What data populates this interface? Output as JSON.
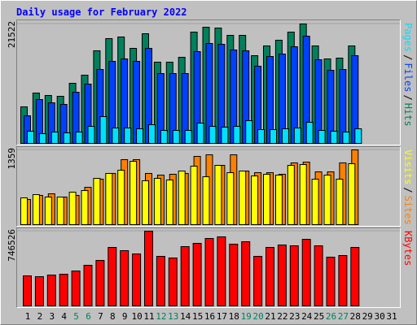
{
  "title": "Daily usage for February 2022",
  "chart_data": [
    {
      "type": "bar",
      "ylim": [
        0,
        21522
      ],
      "yticks": [
        21522
      ],
      "grid": true,
      "legend_separator": "/",
      "series": [
        {
          "name": "Hits",
          "color": "#00805c",
          "values": [
            6590,
            9077,
            8638,
            8491,
            10834,
            12298,
            16690,
            18886,
            19179,
            17129,
            19764,
            14640,
            14640,
            15518,
            20057,
            20935,
            20789,
            19471,
            19471,
            15811,
            17568,
            18593,
            20057,
            21522,
            17568,
            15226,
            15372,
            17568,
            null,
            null,
            null
          ]
        },
        {
          "name": "Files",
          "color": "#0040ff",
          "values": [
            4978,
            7906,
            7320,
            7027,
            9223,
            10687,
            13322,
            14786,
            15226,
            14786,
            17129,
            12590,
            12590,
            12590,
            16543,
            18007,
            17861,
            16836,
            16690,
            13908,
            15665,
            16104,
            17422,
            19325,
            15079,
            13176,
            13322,
            15811,
            null,
            null,
            null
          ]
        },
        {
          "name": "Pages",
          "color": "#00e0ff",
          "values": [
            2196,
            1757,
            2050,
            1903,
            2050,
            3074,
            4831,
            2782,
            2782,
            2635,
            3367,
            2342,
            2342,
            2342,
            3660,
            3074,
            2928,
            3074,
            4099,
            2489,
            2489,
            2635,
            2782,
            3806,
            2342,
            2196,
            2050,
            2635,
            null,
            null,
            null
          ]
        }
      ]
    },
    {
      "type": "bar",
      "ylim": [
        0,
        1359
      ],
      "yticks": [
        1359
      ],
      "grid": true,
      "legend_separator": "/",
      "series": [
        {
          "name": "Sites",
          "color": "#ff8000",
          "values": [
            458,
            532,
            561,
            502,
            532,
            679,
            827,
            931,
            1182,
            1182,
            931,
            901,
            916,
            931,
            1241,
            1270,
            1078,
            1270,
            975,
            945,
            945,
            916,
            1123,
            1137,
            960,
            960,
            1123,
            1359,
            null,
            null,
            null
          ]
        },
        {
          "name": "Visits",
          "color": "#ffff00",
          "values": [
            487,
            546,
            502,
            502,
            591,
            620,
            842,
            931,
            990,
            1152,
            798,
            842,
            812,
            975,
            1063,
            871,
            1078,
            945,
            975,
            886,
            916,
            901,
            1078,
            1093,
            827,
            901,
            827,
            1108,
            null,
            null,
            null
          ]
        }
      ]
    },
    {
      "type": "bar",
      "ylim": [
        0,
        746526
      ],
      "yticks": [
        746526
      ],
      "grid": true,
      "categories": [
        "1",
        "2",
        "3",
        "4",
        "5",
        "6",
        "7",
        "8",
        "9",
        "10",
        "11",
        "12",
        "13",
        "14",
        "15",
        "16",
        "17",
        "18",
        "19",
        "20",
        "21",
        "22",
        "23",
        "24",
        "25",
        "26",
        "27",
        "28",
        "29",
        "30",
        "31"
      ],
      "category_colors": [
        "#000000",
        "#000000",
        "#000000",
        "#000000",
        "#00805c",
        "#00805c",
        "#000000",
        "#000000",
        "#000000",
        "#000000",
        "#000000",
        "#00805c",
        "#00805c",
        "#000000",
        "#000000",
        "#000000",
        "#000000",
        "#000000",
        "#00805c",
        "#00805c",
        "#000000",
        "#000000",
        "#000000",
        "#000000",
        "#000000",
        "#00805c",
        "#00805c",
        "#000000",
        "#000000",
        "#000000",
        "#000000"
      ],
      "series": [
        {
          "name": "KBytes",
          "color": "#ff0000",
          "values": [
            300218,
            292104,
            308332,
            316446,
            348902,
            405700,
            454384,
            584208,
            551752,
            519296,
            746526,
            494954,
            478726,
            592322,
            624778,
            673462,
            689690,
            616664,
            641006,
            494954,
            584208,
            608550,
            600436,
            665348,
            600436,
            486840,
            503068,
            584208,
            null,
            null,
            null
          ]
        }
      ]
    }
  ]
}
